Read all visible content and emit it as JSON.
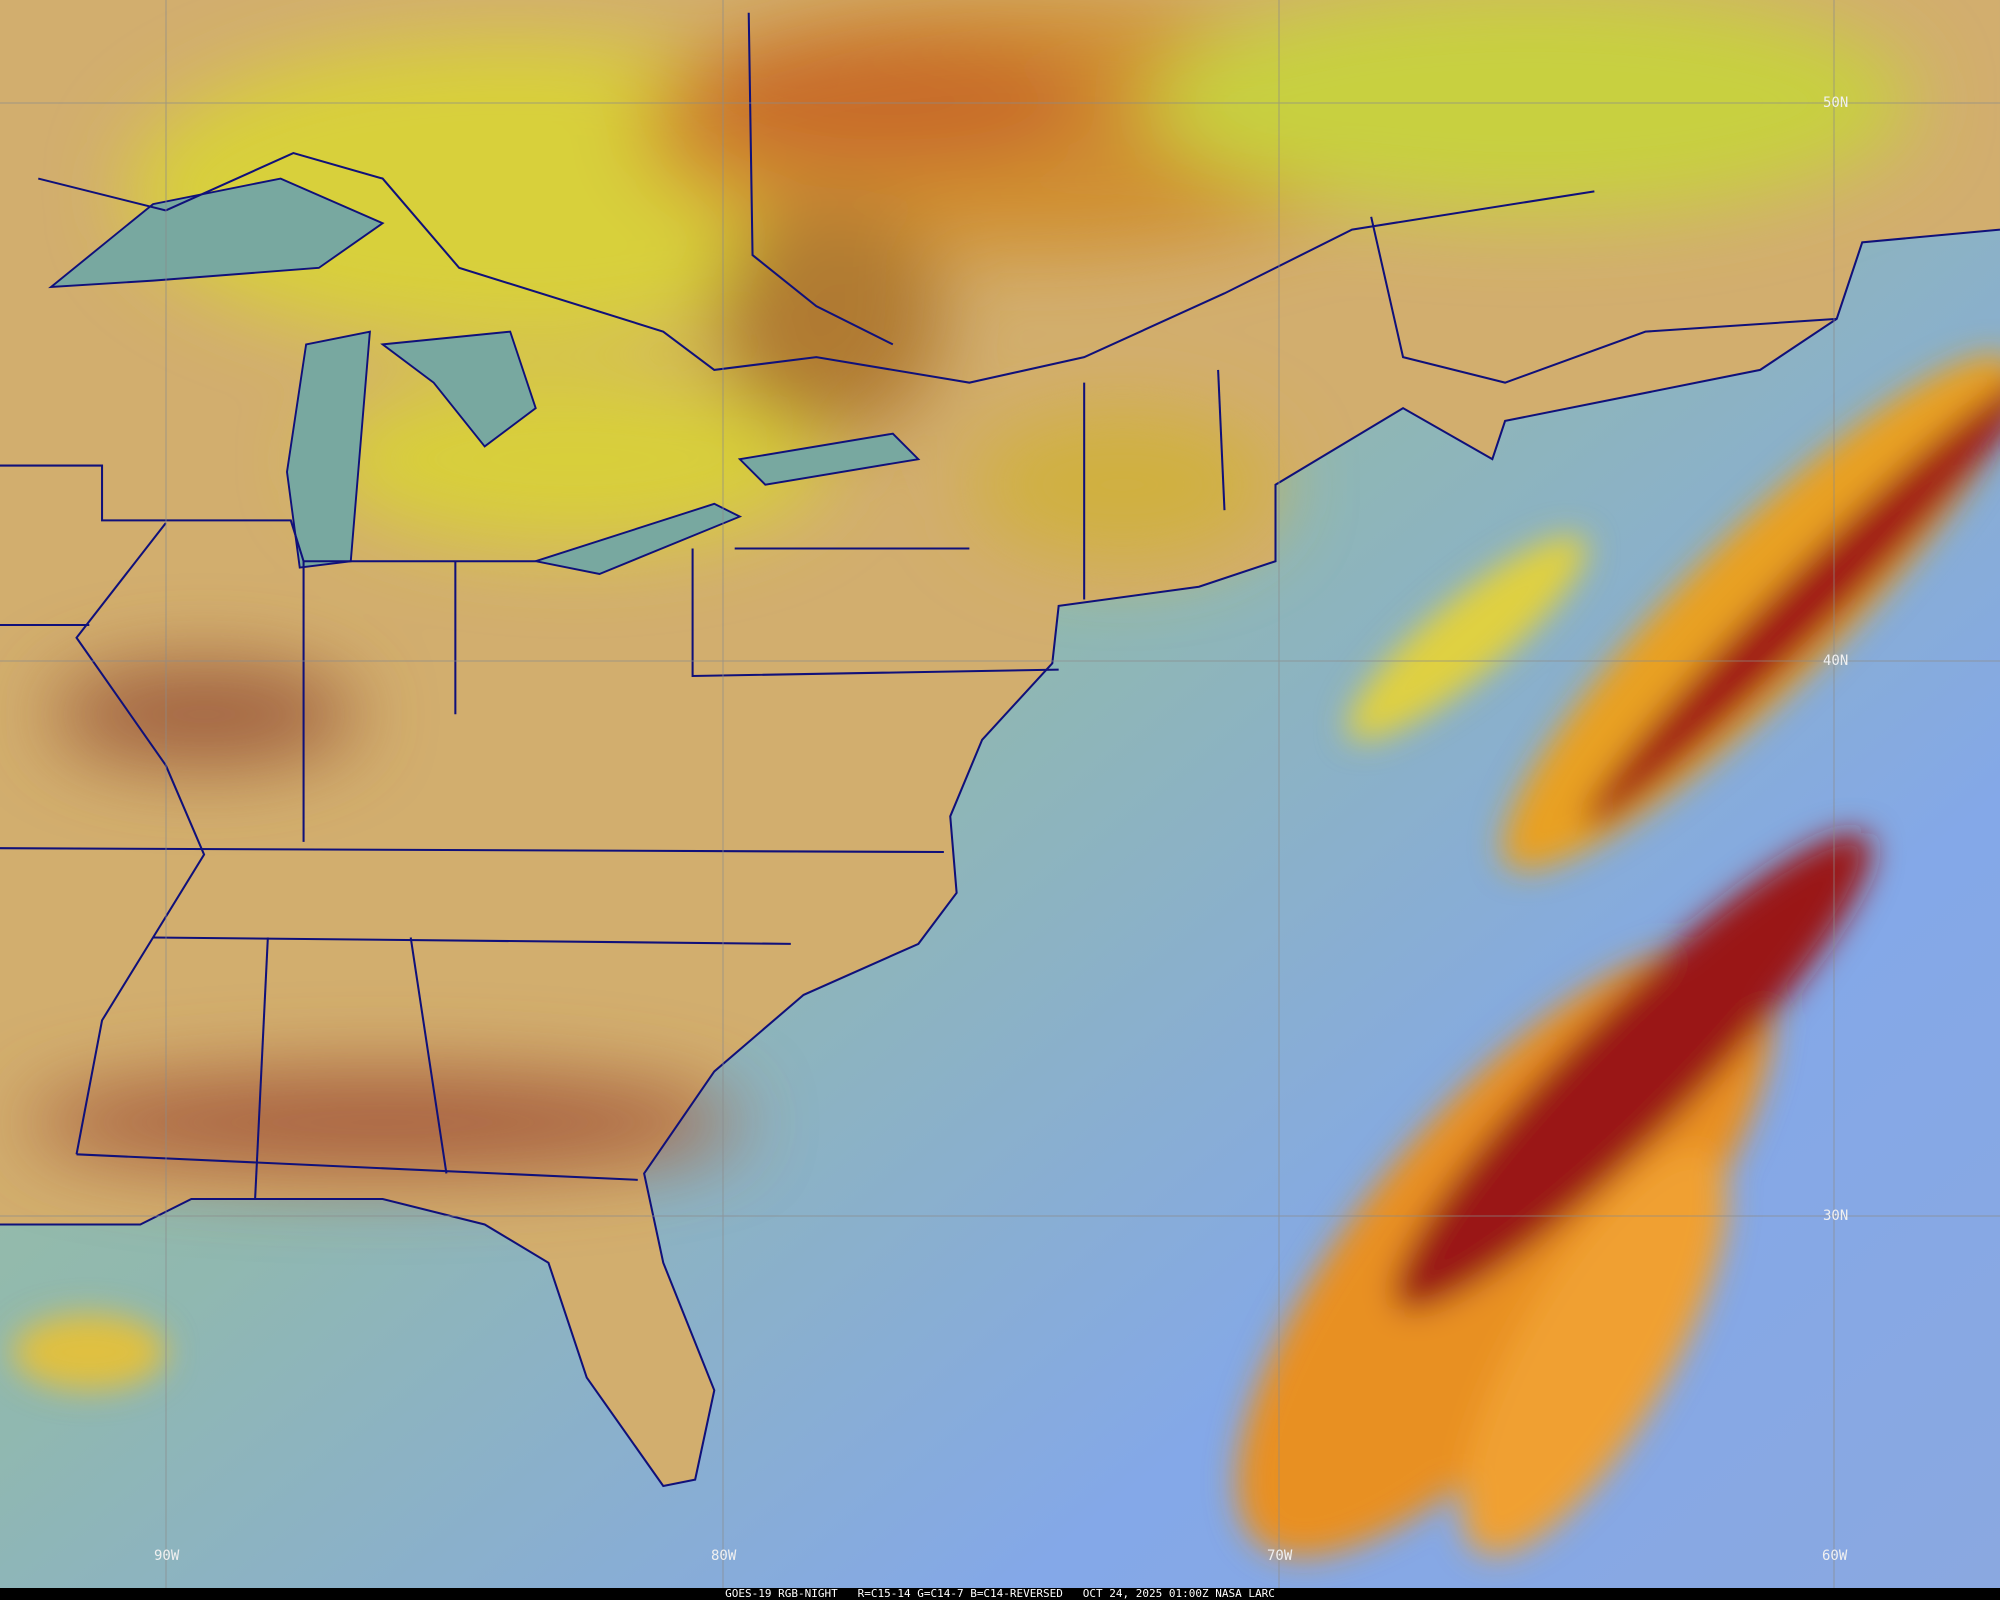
{
  "caption": "GOES-19 RGB-NIGHT   R=C15-14 G=C14-7 B=C14-REVERSED   OCT 24, 2025 01:00Z NASA LARC",
  "latitude_labels": [
    "50N",
    "40N",
    "30N"
  ],
  "longitude_labels": [
    "90W",
    "80W",
    "70W",
    "60W"
  ],
  "colors": {
    "land": "#d2ae6e",
    "north_cloud": "#d8cf3a",
    "ocean_clear": "#86a8e6",
    "ocean_north": "#98bb90",
    "high_cloud_red": "#a01818",
    "high_cloud_orange": "#f0a020",
    "boundaries": "#10107a",
    "grid": "#8a8a8a"
  }
}
